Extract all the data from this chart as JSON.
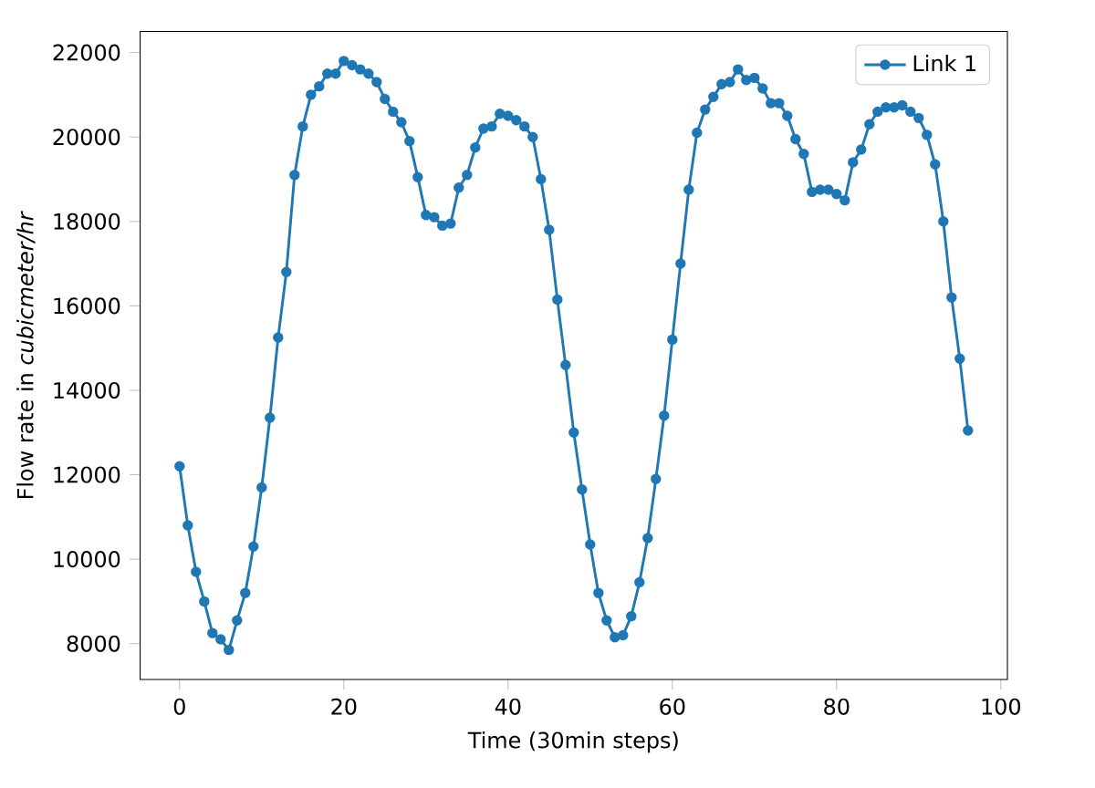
{
  "chart_data": {
    "type": "line",
    "xlabel": "Time (30min steps)",
    "ylabel": "Flow rate in *cubicmeter/hr*",
    "x": [
      0,
      1,
      2,
      3,
      4,
      5,
      6,
      7,
      8,
      9,
      10,
      11,
      12,
      13,
      14,
      15,
      16,
      17,
      18,
      19,
      20,
      21,
      22,
      23,
      24,
      25,
      26,
      27,
      28,
      29,
      30,
      31,
      32,
      33,
      34,
      35,
      36,
      37,
      38,
      39,
      40,
      41,
      42,
      43,
      44,
      45,
      46,
      47,
      48,
      49,
      50,
      51,
      52,
      53,
      54,
      55,
      56,
      57,
      58,
      59,
      60,
      61,
      62,
      63,
      64,
      65,
      66,
      67,
      68,
      69,
      70,
      71,
      72,
      73,
      74,
      75,
      76,
      77,
      78,
      79,
      80,
      81,
      82,
      83,
      84,
      85,
      86,
      87,
      88,
      89,
      90,
      91,
      92,
      93,
      94,
      95,
      96
    ],
    "series": [
      {
        "name": "Link 1",
        "color": "#1f77b4",
        "values": [
          12200,
          10800,
          9700,
          9000,
          8250,
          8100,
          7850,
          8550,
          9200,
          10300,
          11700,
          13350,
          15250,
          16800,
          19100,
          20250,
          21000,
          21200,
          21500,
          21500,
          21800,
          21700,
          21600,
          21500,
          21300,
          20900,
          20600,
          20350,
          19900,
          19050,
          18150,
          18100,
          17900,
          17950,
          18800,
          19100,
          19750,
          20200,
          20250,
          20550,
          20500,
          20400,
          20250,
          20000,
          19000,
          17800,
          16150,
          14600,
          13000,
          11650,
          10350,
          9200,
          8550,
          8150,
          8200,
          8650,
          9450,
          10500,
          11900,
          13400,
          15200,
          17000,
          18750,
          20100,
          20650,
          20950,
          21250,
          21300,
          21600,
          21350,
          21400,
          21150,
          20800,
          20800,
          20500,
          19950,
          19600,
          18700,
          18750,
          18750,
          18650,
          18500,
          19400,
          19700,
          20300,
          20600,
          20700,
          20700,
          20750,
          20600,
          20450,
          20050,
          19350,
          18000,
          16200,
          14750,
          13050
        ]
      }
    ],
    "xlim": [
      -4.8,
      100.8
    ],
    "ylim": [
      7152,
      22498
    ],
    "xticks": [
      0,
      20,
      40,
      60,
      80,
      100
    ],
    "yticks": [
      8000,
      10000,
      12000,
      14000,
      16000,
      18000,
      20000,
      22000
    ],
    "marker": "circle",
    "legend": "top right",
    "grid": false
  }
}
